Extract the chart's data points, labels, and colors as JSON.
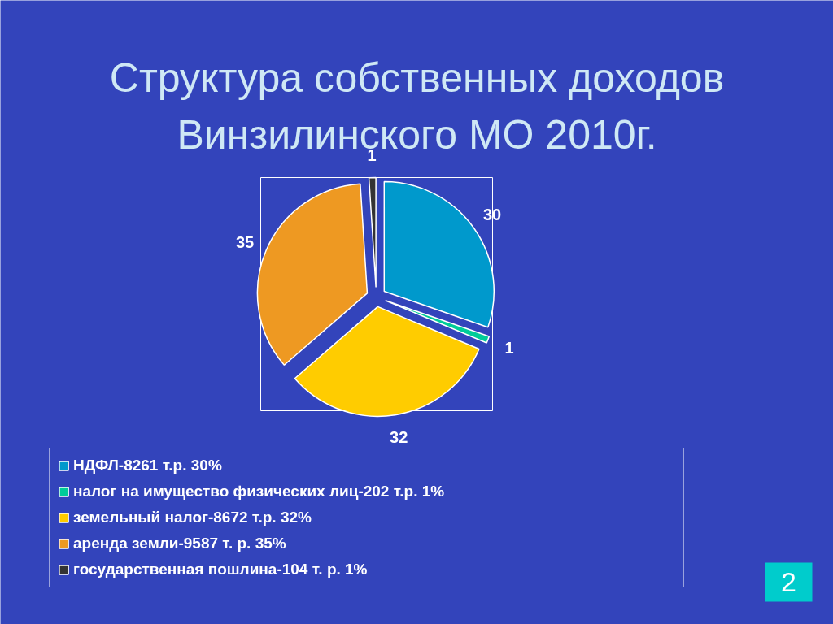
{
  "chart_data": {
    "type": "pie",
    "title": "Структура собственных доходов Винзилинского МО 2010г.",
    "categories": [
      "НДФЛ-8261 т.р. 30%",
      "налог на имущество физических лиц-202 т.р. 1%",
      "земельный налог-8672 т.р. 32%",
      "аренда земли-9587 т. р. 35%",
      "государственная пошлина-104 т. р. 1%"
    ],
    "values": [
      30,
      1,
      32,
      35,
      1
    ],
    "colors": [
      "#0099cc",
      "#00cc99",
      "#ffcc00",
      "#ee9922",
      "#333333"
    ],
    "data_labels": true,
    "legend": "bottom",
    "annotations": [
      "2"
    ]
  }
}
